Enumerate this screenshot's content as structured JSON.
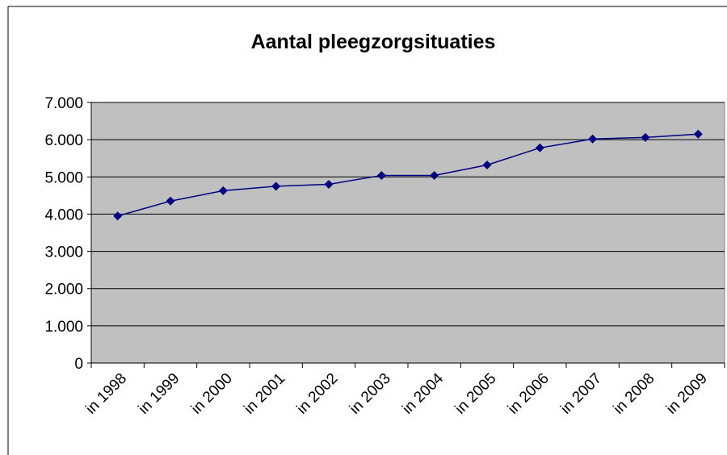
{
  "chart_data": {
    "type": "line",
    "title": "Aantal pleegzorgsituaties",
    "categories": [
      "in 1998",
      "in 1999",
      "in 2000",
      "in 2001",
      "in 2002",
      "in 2003",
      "in 2004",
      "in 2005",
      "in 2006",
      "in 2007",
      "in 2008",
      "in 2009"
    ],
    "series": [
      {
        "name": "Aantal pleegzorgsituaties",
        "color": "#000080",
        "values": [
          3950,
          4350,
          4630,
          4750,
          4800,
          5040,
          5040,
          5320,
          5780,
          6020,
          6060,
          6150
        ]
      }
    ],
    "ylim": [
      0,
      7000
    ],
    "yticks": [
      0,
      {
        "value": 1000,
        "label": "1.000"
      },
      {
        "value": 2000,
        "label": "2.000"
      },
      {
        "value": 3000,
        "label": "3.000"
      },
      {
        "value": 4000,
        "label": "4.000"
      },
      {
        "value": 5000,
        "label": "5.000"
      },
      {
        "value": 6000,
        "label": "6.000"
      },
      {
        "value": 7000,
        "label": "7.000"
      }
    ],
    "grid": true,
    "plot_background": "#c0c0c0"
  }
}
